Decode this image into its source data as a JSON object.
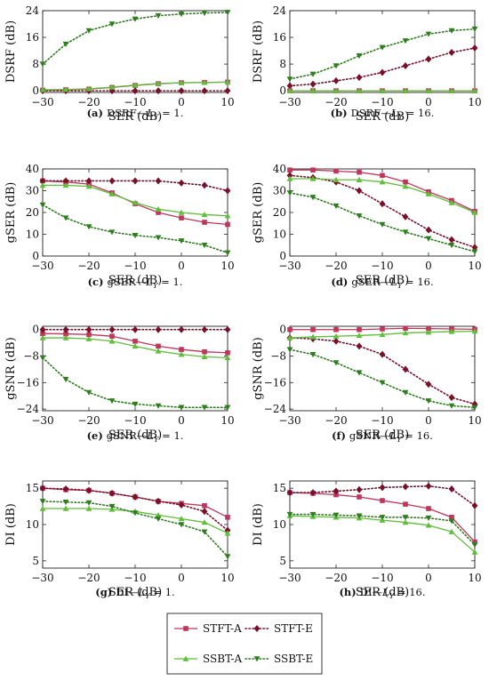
{
  "colors": {
    "STFT-A": "#c1355b",
    "STFT-E": "#7a0f2a",
    "SSBT-A": "#5fbe3a",
    "SSBT-E": "#2e7d1e"
  },
  "legend": {
    "items": [
      {
        "name": "STFT-A",
        "marker": "square",
        "style": "solid"
      },
      {
        "name": "STFT-E",
        "marker": "diamond",
        "style": "dotted"
      },
      {
        "name": "SSBT-A",
        "marker": "triangle-up",
        "style": "solid"
      },
      {
        "name": "SSBT-E",
        "marker": "triangle-down",
        "style": "dotted"
      }
    ]
  },
  "chart_data": [
    {
      "panel": "a",
      "type": "line",
      "caption_tag": "(a)",
      "caption_text": "DSRF—L_Y = 1.",
      "xlabel": "SER (dB)",
      "ylabel": "DSRF (dB)",
      "xlim": [
        -30,
        10
      ],
      "ylim": [
        -0.5,
        24
      ],
      "xticks": [
        -30,
        -20,
        -10,
        0,
        10
      ],
      "yticks": [
        0,
        8,
        16,
        24
      ],
      "x": [
        -30,
        -25,
        -20,
        -15,
        -10,
        -5,
        0,
        5,
        10
      ],
      "series": [
        {
          "name": "STFT-A",
          "values": [
            0.2,
            0.3,
            0.5,
            1.0,
            1.6,
            2.1,
            2.4,
            2.5,
            2.6
          ]
        },
        {
          "name": "STFT-E",
          "values": [
            0,
            0,
            0,
            0,
            0,
            0,
            0,
            0,
            0
          ]
        },
        {
          "name": "SSBT-A",
          "values": [
            0.3,
            0.4,
            0.6,
            1.1,
            1.7,
            2.2,
            2.4,
            2.5,
            2.6
          ]
        },
        {
          "name": "SSBT-E",
          "values": [
            8.0,
            14.0,
            18.0,
            20.0,
            21.5,
            22.5,
            23.0,
            23.3,
            23.5
          ]
        }
      ]
    },
    {
      "panel": "b",
      "type": "line",
      "caption_tag": "(b)",
      "caption_text": "DSRF—L_Y = 16.",
      "xlabel": "SER (dB)",
      "ylabel": "DSRF (dB)",
      "xlim": [
        -30,
        10
      ],
      "ylim": [
        -0.5,
        24
      ],
      "xticks": [
        -30,
        -20,
        -10,
        0,
        10
      ],
      "yticks": [
        0,
        8,
        16,
        24
      ],
      "x": [
        -30,
        -25,
        -20,
        -15,
        -10,
        -5,
        0,
        5,
        10
      ],
      "series": [
        {
          "name": "STFT-A",
          "values": [
            0,
            0,
            0,
            0,
            0,
            0,
            0,
            0,
            0
          ]
        },
        {
          "name": "STFT-E",
          "values": [
            1.5,
            2.0,
            3.0,
            4.0,
            5.5,
            7.5,
            9.5,
            11.5,
            12.8
          ]
        },
        {
          "name": "SSBT-A",
          "values": [
            0,
            0,
            0,
            0,
            0,
            0,
            0,
            0,
            0
          ]
        },
        {
          "name": "SSBT-E",
          "values": [
            3.5,
            5.0,
            7.5,
            10.5,
            13.0,
            15.0,
            17.0,
            18.0,
            18.5
          ]
        }
      ]
    },
    {
      "panel": "c",
      "type": "line",
      "caption_tag": "(c)",
      "caption_text": "gSER—L_Y = 1.",
      "xlabel": "SER (dB)",
      "ylabel": "gSER (dB)",
      "xlim": [
        -30,
        10
      ],
      "ylim": [
        0,
        40
      ],
      "xticks": [
        -30,
        -20,
        -10,
        0,
        10
      ],
      "yticks": [
        0,
        10,
        20,
        30,
        40
      ],
      "x": [
        -30,
        -25,
        -20,
        -15,
        -10,
        -5,
        0,
        5,
        10
      ],
      "series": [
        {
          "name": "STFT-A",
          "values": [
            34.5,
            34.0,
            33.0,
            29.0,
            24.0,
            20.0,
            17.5,
            15.5,
            14.5
          ]
        },
        {
          "name": "STFT-E",
          "values": [
            34.5,
            34.5,
            34.5,
            34.5,
            34.5,
            34.5,
            33.5,
            32.5,
            30.0
          ]
        },
        {
          "name": "SSBT-A",
          "values": [
            32.5,
            32.5,
            32.0,
            28.5,
            24.5,
            21.5,
            20.0,
            19.0,
            18.5
          ]
        },
        {
          "name": "SSBT-E",
          "values": [
            23.5,
            17.5,
            13.5,
            11.0,
            9.5,
            8.5,
            7.0,
            5.0,
            1.5
          ]
        }
      ]
    },
    {
      "panel": "d",
      "type": "line",
      "caption_tag": "(d)",
      "caption_text": "gSER—L_Y = 16.",
      "xlabel": "SER (dB)",
      "ylabel": "gSER (dB)",
      "xlim": [
        -30,
        10
      ],
      "ylim": [
        0,
        40
      ],
      "xticks": [
        -30,
        -20,
        -10,
        0,
        10
      ],
      "yticks": [
        0,
        10,
        20,
        30,
        40
      ],
      "x": [
        -30,
        -25,
        -20,
        -15,
        -10,
        -5,
        0,
        5,
        10
      ],
      "series": [
        {
          "name": "STFT-A",
          "values": [
            39.5,
            39.5,
            39.0,
            38.5,
            37.0,
            34.0,
            29.5,
            25.5,
            20.5
          ]
        },
        {
          "name": "STFT-E",
          "values": [
            37.0,
            36.0,
            34.0,
            30.0,
            24.0,
            18.0,
            12.0,
            7.5,
            4.0
          ]
        },
        {
          "name": "SSBT-A",
          "values": [
            35.5,
            35.5,
            35.0,
            35.0,
            34.0,
            32.0,
            28.5,
            24.5,
            20.0
          ]
        },
        {
          "name": "SSBT-E",
          "values": [
            29.0,
            27.0,
            23.0,
            18.5,
            14.5,
            11.0,
            8.0,
            5.0,
            2.0
          ]
        }
      ]
    },
    {
      "panel": "e",
      "type": "line",
      "caption_tag": "(e)",
      "caption_text": "gSNR—L_Y = 1.",
      "xlabel": "SER (dB)",
      "ylabel": "gSNR (dB)",
      "xlim": [
        -30,
        10
      ],
      "ylim": [
        -24.5,
        1
      ],
      "xticks": [
        -30,
        -20,
        -10,
        0,
        10
      ],
      "yticks": [
        -24,
        -16,
        -8,
        0
      ],
      "x": [
        -30,
        -25,
        -20,
        -15,
        -10,
        -5,
        0,
        5,
        10
      ],
      "series": [
        {
          "name": "STFT-A",
          "values": [
            -1.2,
            -1.3,
            -1.5,
            -2.0,
            -3.5,
            -5.0,
            -6.0,
            -6.7,
            -7.0
          ]
        },
        {
          "name": "STFT-E",
          "values": [
            0,
            0,
            0,
            0,
            0,
            0,
            0,
            0,
            0
          ]
        },
        {
          "name": "SSBT-A",
          "values": [
            -2.5,
            -2.5,
            -2.8,
            -3.5,
            -5.0,
            -6.5,
            -7.5,
            -8.2,
            -8.5
          ]
        },
        {
          "name": "SSBT-E",
          "values": [
            -8.5,
            -15.0,
            -19.0,
            -21.5,
            -22.5,
            -23.0,
            -23.5,
            -23.5,
            -23.5
          ]
        }
      ]
    },
    {
      "panel": "f",
      "type": "line",
      "caption_tag": "(f)",
      "caption_text": "gSNR—L_Y = 16.",
      "xlabel": "SER (dB)",
      "ylabel": "gSNR (dB)",
      "xlim": [
        -30,
        10
      ],
      "ylim": [
        -24.5,
        1
      ],
      "xticks": [
        -30,
        -20,
        -10,
        0,
        10
      ],
      "yticks": [
        -24,
        -16,
        -8,
        0
      ],
      "x": [
        -30,
        -25,
        -20,
        -15,
        -10,
        -5,
        0,
        5,
        10
      ],
      "series": [
        {
          "name": "STFT-A",
          "values": [
            0,
            0,
            0,
            0,
            0.2,
            0.4,
            0.3,
            0.2,
            0.1
          ]
        },
        {
          "name": "STFT-E",
          "values": [
            -2.5,
            -2.8,
            -3.5,
            -5.0,
            -7.5,
            -12.0,
            -16.5,
            -20.5,
            -22.5
          ]
        },
        {
          "name": "SSBT-A",
          "values": [
            -2.5,
            -2.2,
            -2.0,
            -1.8,
            -1.5,
            -1.0,
            -0.8,
            -0.6,
            -0.5
          ]
        },
        {
          "name": "SSBT-E",
          "values": [
            -6.0,
            -7.5,
            -10.0,
            -13.0,
            -16.0,
            -19.0,
            -21.5,
            -23.0,
            -23.5
          ]
        }
      ]
    },
    {
      "panel": "g",
      "type": "line",
      "caption_tag": "(g)",
      "caption_text": "DI—L_Y = 1.",
      "xlabel": "SER (dB)",
      "ylabel": "DI (dB)",
      "xlim": [
        -30,
        10
      ],
      "ylim": [
        4,
        16
      ],
      "xticks": [
        -30,
        -20,
        -10,
        0,
        10
      ],
      "yticks": [
        5,
        10,
        15
      ],
      "x": [
        -30,
        -25,
        -20,
        -15,
        -10,
        -5,
        0,
        5,
        10
      ],
      "series": [
        {
          "name": "STFT-A",
          "values": [
            15.0,
            14.8,
            14.7,
            14.3,
            13.8,
            13.2,
            12.9,
            12.6,
            11.0
          ]
        },
        {
          "name": "STFT-E",
          "values": [
            15.0,
            14.9,
            14.7,
            14.3,
            13.8,
            13.2,
            12.7,
            11.8,
            9.2
          ]
        },
        {
          "name": "SSBT-A",
          "values": [
            12.2,
            12.2,
            12.2,
            12.1,
            11.8,
            11.3,
            10.8,
            10.3,
            8.8
          ]
        },
        {
          "name": "SSBT-E",
          "values": [
            13.2,
            13.1,
            13.0,
            12.5,
            11.6,
            10.8,
            10.0,
            9.0,
            5.6
          ]
        }
      ]
    },
    {
      "panel": "h",
      "type": "line",
      "caption_tag": "(h)",
      "caption_text": "DI—L_Y = 16.",
      "xlabel": "SER (dB)",
      "ylabel": "DI (dB)",
      "xlim": [
        -30,
        10
      ],
      "ylim": [
        4,
        16
      ],
      "xticks": [
        -30,
        -20,
        -10,
        0,
        10
      ],
      "yticks": [
        5,
        10,
        15
      ],
      "x": [
        -30,
        -25,
        -20,
        -15,
        -10,
        -5,
        0,
        5,
        10
      ],
      "series": [
        {
          "name": "STFT-A",
          "values": [
            14.4,
            14.3,
            14.1,
            13.8,
            13.3,
            12.8,
            12.2,
            11.0,
            7.6
          ]
        },
        {
          "name": "STFT-E",
          "values": [
            14.4,
            14.4,
            14.6,
            14.8,
            15.1,
            15.2,
            15.3,
            14.9,
            12.6
          ]
        },
        {
          "name": "SSBT-A",
          "values": [
            11.2,
            11.1,
            11.0,
            10.9,
            10.6,
            10.3,
            9.9,
            9.0,
            6.2
          ]
        },
        {
          "name": "SSBT-E",
          "values": [
            11.4,
            11.4,
            11.3,
            11.2,
            11.0,
            11.0,
            10.9,
            10.5,
            7.2
          ]
        }
      ]
    }
  ]
}
